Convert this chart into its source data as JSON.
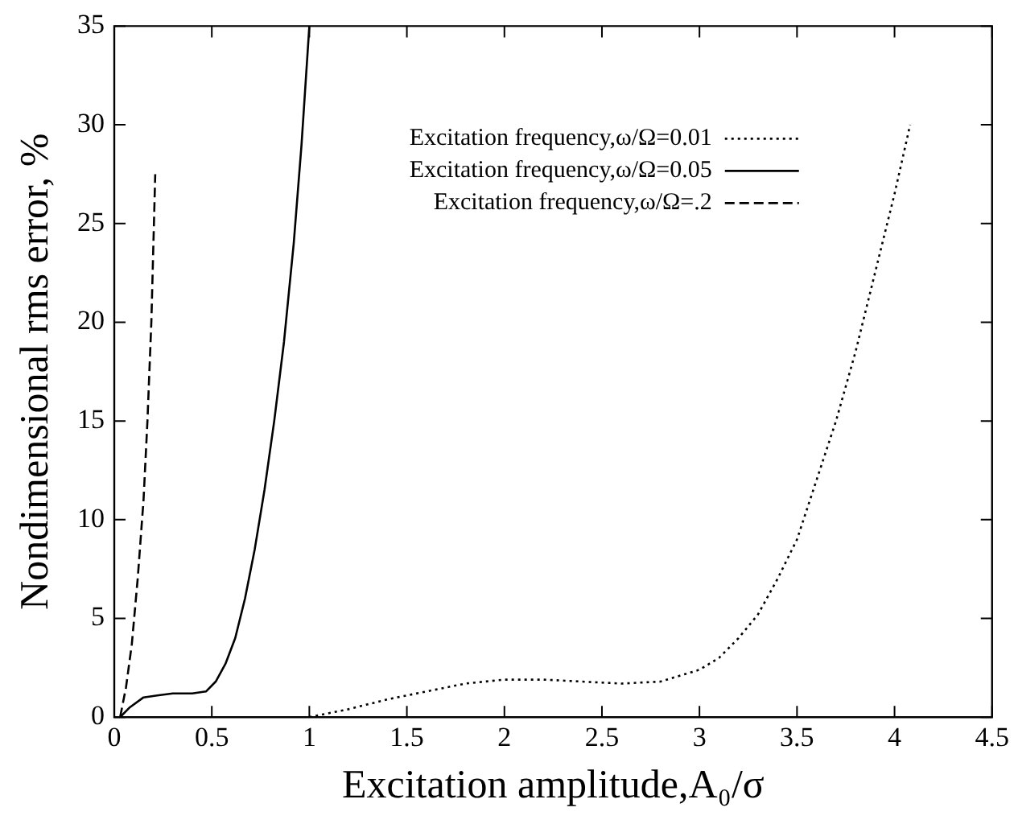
{
  "chart_data": {
    "type": "line",
    "xlabel": "Excitation amplitude,A₀/σ",
    "ylabel": "Nondimensional rms error, %",
    "xlim": [
      0,
      4.5
    ],
    "xticks": [
      0,
      0.5,
      1,
      1.5,
      2,
      2.5,
      3,
      3.5,
      4,
      4.5
    ],
    "ylim": [
      0,
      35
    ],
    "yticks": [
      0,
      5,
      10,
      15,
      20,
      25,
      30,
      35
    ],
    "grid": false,
    "legend": "top right",
    "marker": "none",
    "series": [
      {
        "name": "Excitation frequency,ω/Ω=0.01",
        "color": "#000000",
        "line_style": "dotted",
        "x": [
          1,
          1.2,
          1.4,
          1.6,
          1.8,
          2,
          2.2,
          2.4,
          2.6,
          2.8,
          3,
          3.1,
          3.2,
          3.3,
          3.4,
          3.5,
          3.6,
          3.7,
          3.8,
          3.9,
          4,
          4.08
        ],
        "values": [
          0,
          0.4,
          0.9,
          1.3,
          1.7,
          1.9,
          1.9,
          1.8,
          1.7,
          1.8,
          2.4,
          3,
          4,
          5.2,
          7,
          9,
          12,
          15,
          18.5,
          22.5,
          26.5,
          30
        ]
      },
      {
        "name": "Excitation frequency,ω/Ω=0.05",
        "color": "#000000",
        "line_style": "solid",
        "x": [
          0.03,
          0.08,
          0.15,
          0.22,
          0.3,
          0.4,
          0.47,
          0.52,
          0.57,
          0.62,
          0.67,
          0.72,
          0.77,
          0.82,
          0.87,
          0.92,
          0.96,
          1
        ],
        "values": [
          0,
          0.5,
          1,
          1.1,
          1.2,
          1.2,
          1.3,
          1.8,
          2.7,
          4,
          6,
          8.5,
          11.5,
          15,
          19,
          24,
          29,
          35
        ]
      },
      {
        "name": "Excitation frequency,ω/Ω=.2",
        "color": "#000000",
        "line_style": "dashed",
        "x": [
          0.03,
          0.06,
          0.09,
          0.12,
          0.15,
          0.17,
          0.19,
          0.21
        ],
        "values": [
          0,
          1.5,
          3.7,
          7,
          11,
          15,
          20,
          27.5
        ]
      }
    ]
  }
}
